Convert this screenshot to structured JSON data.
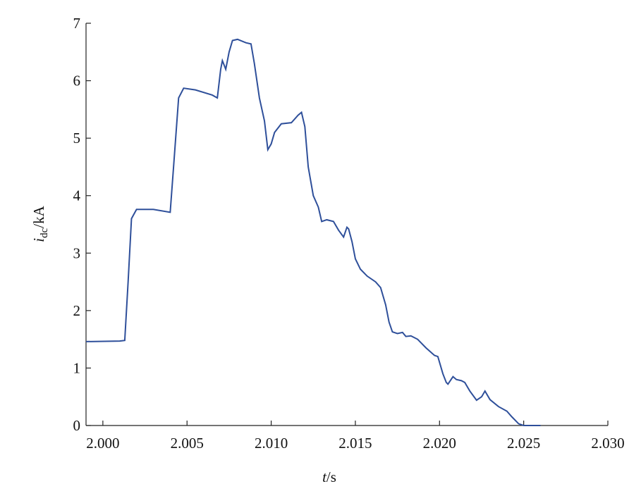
{
  "chart_data": {
    "type": "line",
    "x_label": {
      "var": "t",
      "unit": "/s"
    },
    "y_label": {
      "var": "i",
      "sub": "dc",
      "unit": "/kA"
    },
    "xlim": [
      1.999,
      2.03
    ],
    "ylim": [
      0,
      7
    ],
    "xticks": [
      {
        "value": 2.0,
        "label": "2.000"
      },
      {
        "value": 2.005,
        "label": "2.005"
      },
      {
        "value": 2.01,
        "label": "2.010"
      },
      {
        "value": 2.015,
        "label": "2.015"
      },
      {
        "value": 2.02,
        "label": "2.020"
      },
      {
        "value": 2.025,
        "label": "2.025"
      },
      {
        "value": 2.03,
        "label": "2.030"
      }
    ],
    "yticks": [
      0,
      1,
      2,
      3,
      4,
      5,
      6,
      7
    ],
    "series": [
      {
        "color": "#2e4f9a",
        "x": [
          1.999,
          2.001,
          2.0013,
          2.0015,
          2.0017,
          2.002,
          2.003,
          2.004,
          2.0042,
          2.0045,
          2.0048,
          2.0055,
          2.0065,
          2.0068,
          2.007,
          2.0071,
          2.0073,
          2.0075,
          2.0077,
          2.008,
          2.0085,
          2.0088,
          2.009,
          2.0093,
          2.0096,
          2.0098,
          2.01,
          2.0102,
          2.0106,
          2.0112,
          2.0116,
          2.0118,
          2.012,
          2.0122,
          2.0125,
          2.0128,
          2.013,
          2.0133,
          2.0137,
          2.014,
          2.0143,
          2.0145,
          2.0146,
          2.0148,
          2.015,
          2.0153,
          2.0157,
          2.0162,
          2.0165,
          2.0168,
          2.017,
          2.0172,
          2.0175,
          2.0178,
          2.018,
          2.0183,
          2.0187,
          2.0192,
          2.0197,
          2.0199,
          2.0202,
          2.0204,
          2.0205,
          2.0208,
          2.021,
          2.0213,
          2.0215,
          2.0218,
          2.0222,
          2.0225,
          2.0227,
          2.023,
          2.0235,
          2.024,
          2.0243,
          2.0247,
          2.025,
          2.026
        ],
        "values": [
          1.46,
          1.47,
          1.48,
          2.5,
          3.6,
          3.76,
          3.76,
          3.71,
          4.5,
          5.7,
          5.87,
          5.84,
          5.75,
          5.7,
          6.2,
          6.35,
          6.2,
          6.5,
          6.7,
          6.72,
          6.66,
          6.64,
          6.3,
          5.7,
          5.3,
          4.8,
          4.9,
          5.1,
          5.25,
          5.27,
          5.4,
          5.45,
          5.2,
          4.5,
          4.0,
          3.8,
          3.55,
          3.58,
          3.55,
          3.4,
          3.28,
          3.45,
          3.42,
          3.2,
          2.9,
          2.72,
          2.6,
          2.5,
          2.4,
          2.1,
          1.8,
          1.63,
          1.6,
          1.62,
          1.55,
          1.56,
          1.5,
          1.35,
          1.22,
          1.2,
          0.9,
          0.75,
          0.72,
          0.85,
          0.8,
          0.78,
          0.75,
          0.6,
          0.44,
          0.5,
          0.6,
          0.45,
          0.33,
          0.25,
          0.15,
          0.03,
          0,
          0
        ]
      }
    ]
  }
}
